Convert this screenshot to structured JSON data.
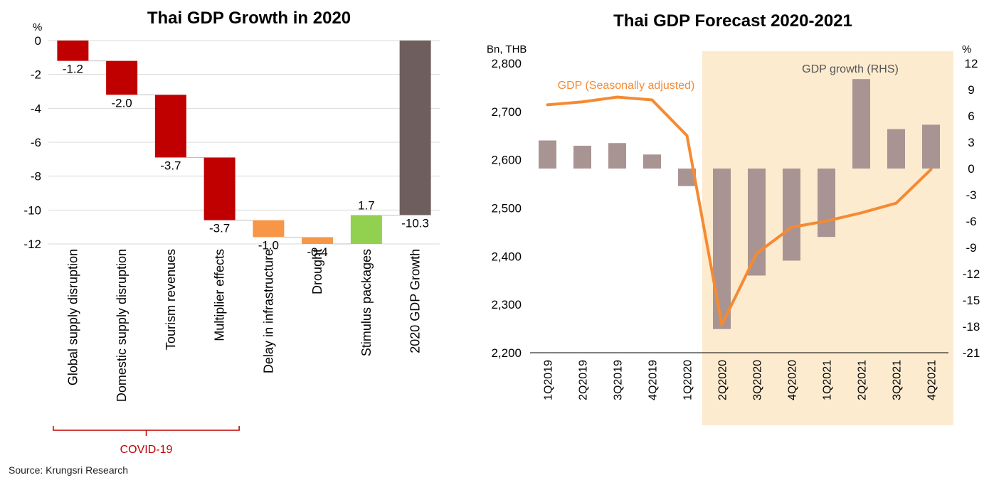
{
  "chart_data": [
    {
      "type": "bar",
      "subtype": "waterfall",
      "title": "Thai GDP Growth in 2020",
      "y_unit": "%",
      "ylim": [
        -12,
        0
      ],
      "y_ticks": [
        "0",
        "-2",
        "-4",
        "-6",
        "-8",
        "-10",
        "-12"
      ],
      "grid": true,
      "categories": [
        "Global supply disruption",
        "Domestic supply disruption",
        "Tourism revenues",
        "Multiplier effects",
        "Delay in infrastructure",
        "Drought",
        "Stimulus packages",
        "2020 GDP Growth"
      ],
      "values": [
        -1.2,
        -2.0,
        -3.7,
        -3.7,
        -1.0,
        -0.4,
        1.7,
        -10.3
      ],
      "value_labels": [
        "-1.2",
        "-2.0",
        "-3.7",
        "-3.7",
        "-1.0",
        "-0.4",
        "1.7",
        "-10.3"
      ],
      "bar_colors": [
        "#c00000",
        "#c00000",
        "#c00000",
        "#c00000",
        "#f79646",
        "#f79646",
        "#92d050",
        "#6e5f5e"
      ],
      "bracket": {
        "label": "COVID-19",
        "from": 0,
        "to": 3,
        "color": "#c00000"
      }
    },
    {
      "type": "bar+line",
      "title": "Thai GDP Forecast 2020-2021",
      "y_left_unit": "Bn, THB",
      "y_right_unit": "%",
      "ylim_left": [
        2200,
        2800
      ],
      "ylim_right": [
        -21,
        12
      ],
      "y_left_ticks": [
        "2,800",
        "2,700",
        "2,600",
        "2,500",
        "2,400",
        "2,300",
        "2,200"
      ],
      "y_right_ticks": [
        "12",
        "9",
        "6",
        "3",
        "0",
        "-3",
        "-6",
        "-9",
        "-12",
        "-15",
        "-18",
        "-21"
      ],
      "categories": [
        "1Q2019",
        "2Q2019",
        "3Q2019",
        "4Q2019",
        "1Q2020",
        "2Q2020",
        "3Q2020",
        "4Q2020",
        "1Q2021",
        "2Q2021",
        "3Q2021",
        "4Q2021"
      ],
      "forecast_shading": {
        "from": "2Q2020",
        "to": "4Q2021",
        "color": "#fdebd0"
      },
      "series": [
        {
          "name": "GDP growth (RHS)",
          "type": "bar",
          "axis": "right",
          "color": "#a89492",
          "values": [
            3.2,
            2.6,
            2.9,
            1.6,
            -2.0,
            -18.3,
            -12.2,
            -10.5,
            -7.8,
            10.2,
            4.5,
            5.0
          ]
        },
        {
          "name": "GDP (Seasonally adjusted)",
          "type": "line",
          "axis": "left",
          "color": "#f58a32",
          "values": [
            2714,
            2720,
            2730,
            2724,
            2650,
            2258,
            2406,
            2460,
            2473,
            2490,
            2510,
            2580
          ]
        }
      ]
    }
  ],
  "charts": {
    "left": {
      "title": "Thai GDP Growth in 2020",
      "unit": "%"
    },
    "right": {
      "title": "Thai GDP Forecast 2020-2021",
      "unit_left": "Bn, THB",
      "unit_right": "%",
      "line_label": "GDP (Seasonally adjusted)",
      "bar_label": "GDP growth (RHS)"
    }
  },
  "source": "Source: Krungsri Research"
}
